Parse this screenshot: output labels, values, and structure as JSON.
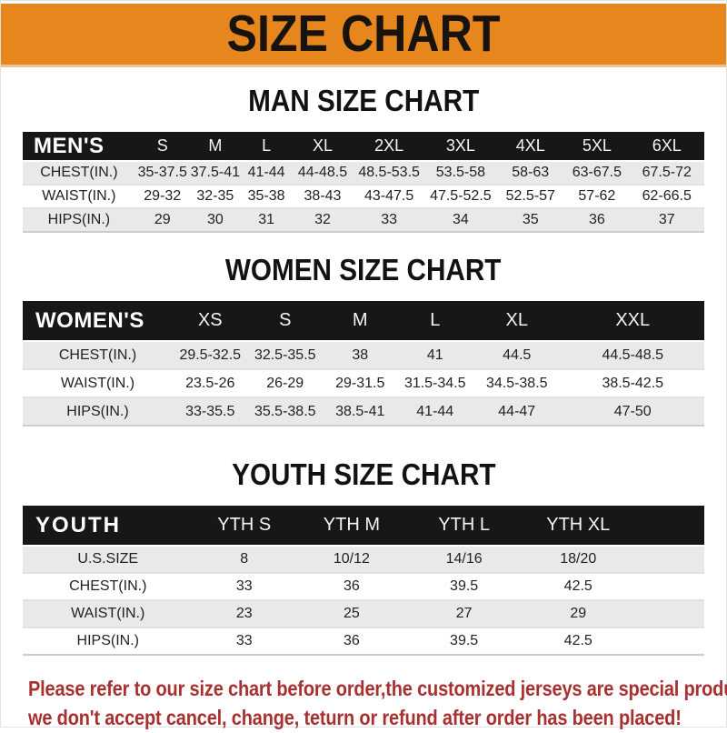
{
  "colors": {
    "banner-bg": "#E8861E",
    "header-bg": "#171717",
    "stripe": "#E9E9E9",
    "disclaimer-color": "#A93030"
  },
  "banner": {
    "title": "SIZE CHART"
  },
  "headings": {
    "men": "MAN SIZE CHART",
    "women": "WOMEN SIZE CHART",
    "youth": "YOUTH SIZE CHART"
  },
  "tables": {
    "men": {
      "corner": "MEN'S",
      "sizes": [
        "S",
        "M",
        "L",
        "XL",
        "2XL",
        "3XL",
        "4XL",
        "5XL",
        "6XL"
      ],
      "rows": [
        {
          "label": "CHEST(IN.)",
          "values": [
            "35-37.5",
            "37.5-41",
            "41-44",
            "44-48.5",
            "48.5-53.5",
            "53.5-58",
            "58-63",
            "63-67.5",
            "67.5-72"
          ]
        },
        {
          "label": "WAIST(IN.)",
          "values": [
            "29-32",
            "32-35",
            "35-38",
            "38-43",
            "43-47.5",
            "47.5-52.5",
            "52.5-57",
            "57-62",
            "62-66.5"
          ]
        },
        {
          "label": "HIPS(IN.)",
          "values": [
            "29",
            "30",
            "31",
            "32",
            "33",
            "34",
            "35",
            "36",
            "37"
          ]
        }
      ]
    },
    "women": {
      "corner": "WOMEN'S",
      "sizes": [
        "XS",
        "S",
        "M",
        "L",
        "XL",
        "XXL"
      ],
      "rows": [
        {
          "label": "CHEST(IN.)",
          "values": [
            "29.5-32.5",
            "32.5-35.5",
            "38",
            "41",
            "44.5",
            "44.5-48.5"
          ]
        },
        {
          "label": "WAIST(IN.)",
          "values": [
            "23.5-26",
            "26-29",
            "29-31.5",
            "31.5-34.5",
            "34.5-38.5",
            "38.5-42.5"
          ]
        },
        {
          "label": "HIPS(IN.)",
          "values": [
            "33-35.5",
            "35.5-38.5",
            "38.5-41",
            "41-44",
            "44-47",
            "47-50"
          ]
        }
      ]
    },
    "youth": {
      "corner": "YOUTH",
      "sizes": [
        "YTH S",
        "YTH M",
        "YTH L",
        "YTH XL"
      ],
      "rows": [
        {
          "label": "U.S.SIZE",
          "values": [
            "8",
            "10/12",
            "14/16",
            "18/20"
          ]
        },
        {
          "label": "CHEST(IN.)",
          "values": [
            "33",
            "36",
            "39.5",
            "42.5"
          ]
        },
        {
          "label": "WAIST(IN.)",
          "values": [
            "23",
            "25",
            "27",
            "29"
          ]
        },
        {
          "label": "HIPS(IN.)",
          "values": [
            "33",
            "36",
            "39.5",
            "42.5"
          ]
        }
      ]
    }
  },
  "disclaimer": {
    "line1": "Please refer to our size chart before order,the customized jerseys are special products,",
    "line2": "we don't accept cancel, change, teturn or refund after order has been placed!"
  }
}
